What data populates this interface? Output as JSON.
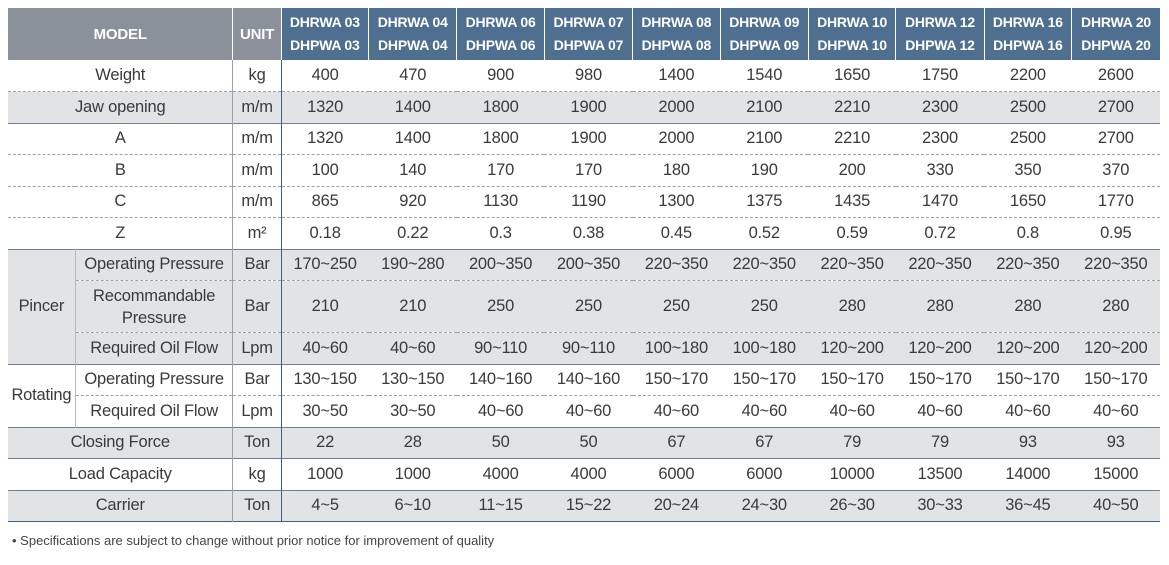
{
  "header": {
    "model": "MODEL",
    "unit": "UNIT",
    "models": [
      [
        "DHRWA 03",
        "DHPWA 03"
      ],
      [
        "DHRWA 04",
        "DHPWA 04"
      ],
      [
        "DHRWA 06",
        "DHPWA 06"
      ],
      [
        "DHRWA 07",
        "DHPWA 07"
      ],
      [
        "DHRWA 08",
        "DHPWA 08"
      ],
      [
        "DHRWA 09",
        "DHPWA 09"
      ],
      [
        "DHRWA 10",
        "DHPWA 10"
      ],
      [
        "DHRWA 12",
        "DHPWA 12"
      ],
      [
        "DHRWA 16",
        "DHPWA 16"
      ],
      [
        "DHRWA 20",
        "DHPWA 20"
      ]
    ]
  },
  "groups": {
    "pincer": "Pincer",
    "rotating": "Rotating"
  },
  "rows": [
    {
      "label": "Weight",
      "unit": "kg",
      "values": [
        "400",
        "470",
        "900",
        "980",
        "1400",
        "1540",
        "1650",
        "1750",
        "2200",
        "2600"
      ]
    },
    {
      "label": "Jaw opening",
      "unit": "m/m",
      "values": [
        "1320",
        "1400",
        "1800",
        "1900",
        "2000",
        "2100",
        "2210",
        "2300",
        "2500",
        "2700"
      ]
    },
    {
      "label": "A",
      "unit": "m/m",
      "values": [
        "1320",
        "1400",
        "1800",
        "1900",
        "2000",
        "2100",
        "2210",
        "2300",
        "2500",
        "2700"
      ]
    },
    {
      "label": "B",
      "unit": "m/m",
      "values": [
        "100",
        "140",
        "170",
        "170",
        "180",
        "190",
        "200",
        "330",
        "350",
        "370"
      ]
    },
    {
      "label": "C",
      "unit": "m/m",
      "values": [
        "865",
        "920",
        "1130",
        "1190",
        "1300",
        "1375",
        "1435",
        "1470",
        "1650",
        "1770"
      ]
    },
    {
      "label": "Z",
      "unit": "m²",
      "values": [
        "0.18",
        "0.22",
        "0.3",
        "0.38",
        "0.45",
        "0.52",
        "0.59",
        "0.72",
        "0.8",
        "0.95"
      ]
    },
    {
      "label": "Operating Pressure",
      "unit": "Bar",
      "values": [
        "170~250",
        "190~280",
        "200~350",
        "200~350",
        "220~350",
        "220~350",
        "220~350",
        "220~350",
        "220~350",
        "220~350"
      ]
    },
    {
      "label": "Recommandable Pressure",
      "unit": "Bar",
      "values": [
        "210",
        "210",
        "250",
        "250",
        "250",
        "250",
        "280",
        "280",
        "280",
        "280"
      ]
    },
    {
      "label": "Required Oil Flow",
      "unit": "Lpm",
      "values": [
        "40~60",
        "40~60",
        "90~110",
        "90~110",
        "100~180",
        "100~180",
        "120~200",
        "120~200",
        "120~200",
        "120~200"
      ]
    },
    {
      "label": "Operating Pressure",
      "unit": "Bar",
      "values": [
        "130~150",
        "130~150",
        "140~160",
        "140~160",
        "150~170",
        "150~170",
        "150~170",
        "150~170",
        "150~170",
        "150~170"
      ]
    },
    {
      "label": "Required Oil Flow",
      "unit": "Lpm",
      "values": [
        "30~50",
        "30~50",
        "40~60",
        "40~60",
        "40~60",
        "40~60",
        "40~60",
        "40~60",
        "40~60",
        "40~60"
      ]
    },
    {
      "label": "Closing Force",
      "unit": "Ton",
      "values": [
        "22",
        "28",
        "50",
        "50",
        "67",
        "67",
        "79",
        "79",
        "93",
        "93"
      ]
    },
    {
      "label": "Load Capacity",
      "unit": "kg",
      "values": [
        "1000",
        "1000",
        "4000",
        "4000",
        "6000",
        "6000",
        "10000",
        "13500",
        "14000",
        "15000"
      ]
    },
    {
      "label": "Carrier",
      "unit": "Ton",
      "values": [
        "4~5",
        "6~10",
        "11~15",
        "15~22",
        "20~24",
        "24~30",
        "26~30",
        "30~33",
        "36~45",
        "40~50"
      ]
    }
  ],
  "note": "• Specifications are subject to change without prior notice for improvement of quality"
}
